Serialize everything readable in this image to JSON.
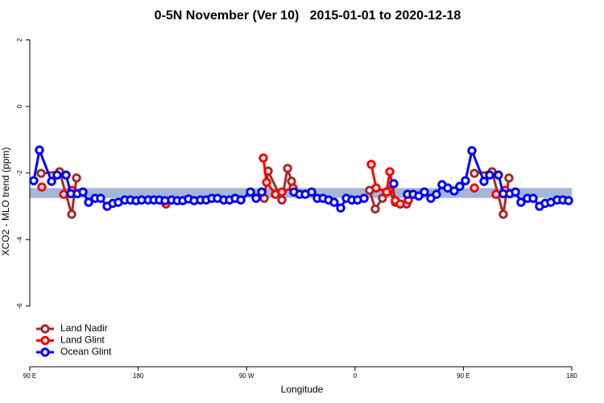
{
  "chart_data": {
    "type": "line",
    "title": "0-5N November (Ver 10)   2015-01-01 to 2020-12-18",
    "x_label": "Longitude",
    "y_label": "XCO2 - MLO trend (ppm)",
    "xlim": [
      90,
      540
    ],
    "xticks": [
      {
        "value": 90,
        "label": "90 E"
      },
      180,
      {
        "value": 270,
        "label": "90 W"
      },
      {
        "value": 360,
        "label": "0"
      },
      {
        "value": 450,
        "label": "90 E"
      },
      {
        "value": 540,
        "label": "180"
      }
    ],
    "ylim": [
      -7.82,
      2.23
    ],
    "yticks": [
      2,
      0,
      -2,
      -4,
      -6
    ],
    "band": {
      "color": "#a3b8d8",
      "range": [
        -2.75,
        -2.45
      ]
    },
    "legend": "bottom-left",
    "series": [
      {
        "name": "Land Nadir",
        "color": "#a52a2a",
        "x": [
          99.4,
          114.7,
          124.8,
          128.8,
          null,
          284.6,
          287.9,
          299.3,
          304.0,
          307.3,
          null,
          372.1,
          376.8,
          382.8,
          388.2,
          393.5,
          402.9,
          null,
          459.1,
          473.8,
          483.1,
          487.8
        ],
        "values": [
          -2.01,
          -1.96,
          -3.24,
          -2.15,
          null,
          -2.76,
          -1.94,
          -2.81,
          -1.86,
          -2.25,
          null,
          -2.52,
          -3.08,
          -2.76,
          -2.52,
          -2.88,
          -2.93,
          null,
          -2.01,
          -1.96,
          -3.24,
          -2.15
        ]
      },
      {
        "name": "Land Glint",
        "color": "#ff0000",
        "x": [
          100.0,
          null,
          118.1,
          124.8,
          null,
          203.0,
          null,
          283.9,
          286.6,
          293.9,
          299.3,
          308.6,
          null,
          373.5,
          377.5,
          386.2,
          388.9,
          393.5,
          397.6,
          404.3,
          null,
          459.1,
          null,
          477.1,
          484.5
        ],
        "values": [
          -2.42,
          null,
          -2.64,
          -2.52,
          null,
          -2.93,
          null,
          -1.55,
          -2.28,
          -2.64,
          -2.57,
          -2.45,
          null,
          -1.74,
          -2.45,
          -2.57,
          -1.96,
          -2.83,
          -2.93,
          -2.81,
          null,
          -2.45,
          null,
          -2.64,
          -2.52
        ]
      },
      {
        "name": "Ocean Glint",
        "color": "#0000ff",
        "x": [
          93.3,
          98.0,
          108.1,
          112.7,
          120.1,
          124.1,
          129.4,
          134.1,
          138.8,
          144.2,
          148.8,
          154.2,
          158.9,
          163.5,
          168.9,
          173.6,
          178.3,
          182.9,
          188.3,
          193.0,
          197.6,
          202.3,
          207.7,
          212.4,
          217.0,
          221.7,
          226.4,
          231.7,
          236.4,
          241.1,
          245.8,
          251.1,
          255.8,
          260.5,
          265.2,
          273.2,
          277.9,
          282.6,
          null,
          309.3,
          314.0,
          318.7,
          324.0,
          328.7,
          333.4,
          338.1,
          342.7,
          348.1,
          352.8,
          357.4,
          362.1,
          367.5,
          null,
          392.2,
          null,
          403.6,
          408.3,
          412.9,
          417.6,
          423.0,
          427.6,
          432.3,
          437.0,
          442.4,
          447.0,
          451.7,
          457.1,
          467.1,
          471.8,
          479.1,
          483.1,
          488.5,
          493.2,
          497.8,
          503.2,
          507.9,
          513.2,
          517.9,
          522.6,
          527.9,
          532.6,
          537.3
        ],
        "values": [
          -2.23,
          -1.31,
          -2.25,
          -2.06,
          -2.06,
          -2.62,
          -2.62,
          -2.57,
          -2.88,
          -2.76,
          -2.76,
          -3.0,
          -2.91,
          -2.88,
          -2.81,
          -2.81,
          -2.83,
          -2.81,
          -2.81,
          -2.81,
          -2.81,
          -2.83,
          -2.81,
          -2.83,
          -2.83,
          -2.78,
          -2.83,
          -2.81,
          -2.81,
          -2.76,
          -2.76,
          -2.81,
          -2.81,
          -2.76,
          -2.81,
          -2.57,
          -2.76,
          -2.57,
          null,
          -2.57,
          -2.64,
          -2.64,
          -2.57,
          -2.76,
          -2.76,
          -2.81,
          -2.88,
          -3.05,
          -2.76,
          -2.81,
          -2.81,
          -2.76,
          null,
          -2.32,
          null,
          -2.64,
          -2.64,
          -2.69,
          -2.57,
          -2.76,
          -2.64,
          -2.35,
          -2.45,
          -2.54,
          -2.4,
          -2.23,
          -1.33,
          -2.25,
          -2.06,
          -2.06,
          -2.62,
          -2.62,
          -2.57,
          -2.88,
          -2.76,
          -2.76,
          -3.0,
          -2.91,
          -2.88,
          -2.81,
          -2.81,
          -2.83
        ]
      }
    ]
  }
}
